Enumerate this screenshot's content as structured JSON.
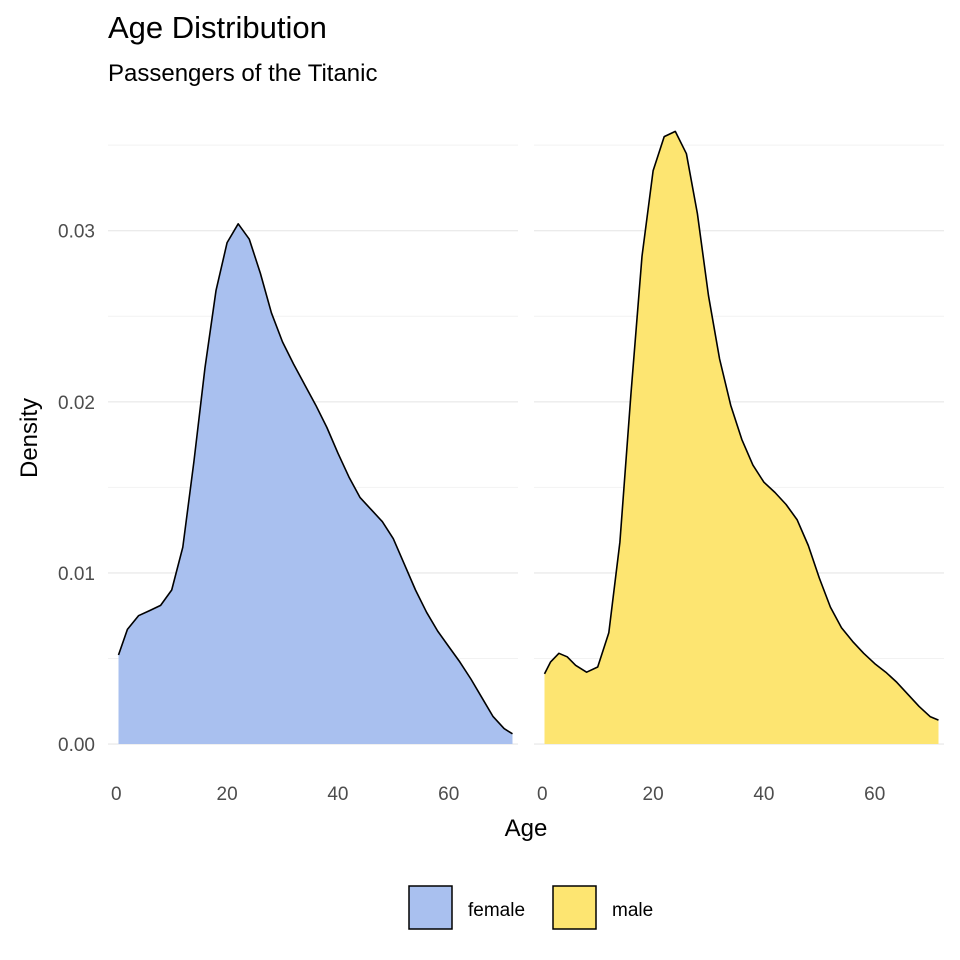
{
  "chart_data": {
    "type": "area",
    "title": "Age Distribution",
    "subtitle": "Passengers of the Titanic",
    "xlabel": "Age",
    "ylabel": "Density",
    "xlim": [
      -1.5,
      72.5
    ],
    "ylim": [
      -0.0007,
      0.036
    ],
    "x_ticks": [
      0,
      20,
      40,
      60
    ],
    "y_ticks": [
      0.0,
      0.01,
      0.02,
      0.03
    ],
    "y_tick_labels": [
      "0.00",
      "0.01",
      "0.02",
      "0.03"
    ],
    "grid": true,
    "legend_position": "bottom",
    "series": [
      {
        "name": "female",
        "color": "#A9C0EF",
        "points": [
          [
            0.4,
            0.0052
          ],
          [
            2,
            0.0067
          ],
          [
            4,
            0.0075
          ],
          [
            6,
            0.0078
          ],
          [
            8,
            0.0081
          ],
          [
            10,
            0.009
          ],
          [
            12,
            0.0115
          ],
          [
            14,
            0.0165
          ],
          [
            16,
            0.022
          ],
          [
            18,
            0.0265
          ],
          [
            20,
            0.0293
          ],
          [
            22,
            0.0304
          ],
          [
            24,
            0.0295
          ],
          [
            26,
            0.0275
          ],
          [
            28,
            0.0252
          ],
          [
            30,
            0.0235
          ],
          [
            32,
            0.0222
          ],
          [
            34,
            0.021
          ],
          [
            36,
            0.0198
          ],
          [
            38,
            0.0185
          ],
          [
            40,
            0.017
          ],
          [
            42,
            0.0156
          ],
          [
            44,
            0.0144
          ],
          [
            46,
            0.0137
          ],
          [
            48,
            0.013
          ],
          [
            50,
            0.012
          ],
          [
            52,
            0.0105
          ],
          [
            54,
            0.009
          ],
          [
            56,
            0.0077
          ],
          [
            58,
            0.0066
          ],
          [
            60,
            0.0057
          ],
          [
            62,
            0.0048
          ],
          [
            64,
            0.0038
          ],
          [
            66,
            0.0027
          ],
          [
            68,
            0.0016
          ],
          [
            70,
            0.0009
          ],
          [
            71.5,
            0.0006
          ]
        ]
      },
      {
        "name": "male",
        "color": "#FDE571",
        "points": [
          [
            0.4,
            0.0041
          ],
          [
            1.5,
            0.0048
          ],
          [
            3,
            0.0053
          ],
          [
            4.5,
            0.0051
          ],
          [
            6,
            0.0046
          ],
          [
            8,
            0.0042
          ],
          [
            10,
            0.0045
          ],
          [
            12,
            0.0065
          ],
          [
            14,
            0.0118
          ],
          [
            16,
            0.0205
          ],
          [
            18,
            0.0285
          ],
          [
            20,
            0.0335
          ],
          [
            22,
            0.0355
          ],
          [
            24,
            0.0358
          ],
          [
            26,
            0.0345
          ],
          [
            28,
            0.031
          ],
          [
            30,
            0.0262
          ],
          [
            32,
            0.0225
          ],
          [
            34,
            0.0198
          ],
          [
            36,
            0.0178
          ],
          [
            38,
            0.0163
          ],
          [
            40,
            0.0153
          ],
          [
            42,
            0.0147
          ],
          [
            44,
            0.014
          ],
          [
            46,
            0.0131
          ],
          [
            48,
            0.0116
          ],
          [
            50,
            0.0097
          ],
          [
            52,
            0.008
          ],
          [
            54,
            0.0068
          ],
          [
            56,
            0.006
          ],
          [
            58,
            0.0053
          ],
          [
            60,
            0.0047
          ],
          [
            62,
            0.0042
          ],
          [
            64,
            0.0036
          ],
          [
            66,
            0.0029
          ],
          [
            68,
            0.0022
          ],
          [
            70,
            0.0016
          ],
          [
            71.5,
            0.0014
          ]
        ]
      }
    ]
  }
}
